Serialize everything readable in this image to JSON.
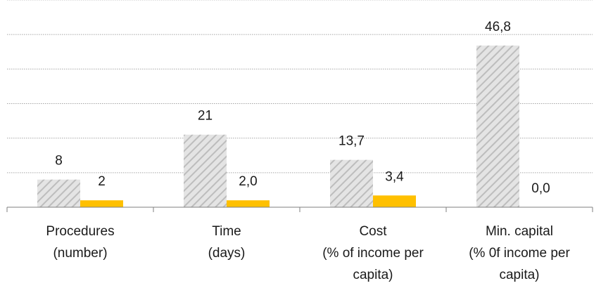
{
  "chart_data": {
    "type": "bar",
    "categories": [
      "Procedures\n(number)",
      "Time\n(days)",
      "Cost\n(% of income per\ncapita)",
      "Min. capital\n(% 0f income per\ncapita)"
    ],
    "series": [
      {
        "values": [
          8,
          21,
          13.7,
          46.8
        ],
        "labels": [
          "8",
          "21",
          "13,7",
          "46,8"
        ],
        "color": "#bfbfbf",
        "pattern": "diagonal-hatch"
      },
      {
        "values": [
          2,
          2.0,
          3.4,
          0.0
        ],
        "labels": [
          "2",
          "2,0",
          "3,4",
          "0,0"
        ],
        "color": "#ffc000",
        "pattern": "solid"
      }
    ],
    "title": "",
    "xlabel": "",
    "ylabel": "",
    "ylim": [
      0,
      60
    ],
    "grid": true,
    "legend": "none"
  }
}
